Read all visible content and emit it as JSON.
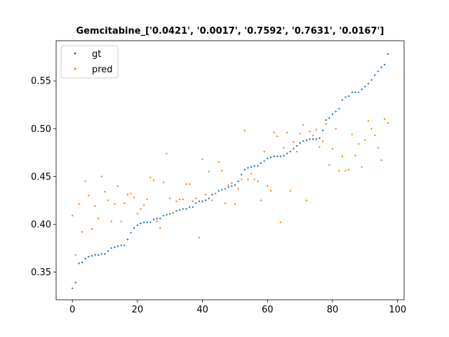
{
  "chart_data": {
    "type": "scatter",
    "title": "Gemcitabine_['0.0421', '0.0017', '0.7592', '0.7631', '0.0167']",
    "xlabel": "",
    "ylabel": "",
    "xlim": [
      -5,
      102
    ],
    "ylim": [
      0.321,
      0.592
    ],
    "xticks": [
      0,
      20,
      40,
      60,
      80,
      100
    ],
    "yticks": [
      0.35,
      0.4,
      0.45,
      0.5,
      0.55
    ],
    "xtick_labels": [
      "0",
      "20",
      "40",
      "60",
      "80",
      "100"
    ],
    "ytick_labels": [
      "0.35",
      "0.40",
      "0.45",
      "0.50",
      "0.55"
    ],
    "grid": false,
    "legend_position": "top-left",
    "series": [
      {
        "name": "gt",
        "color": "#1f77b4",
        "x": [
          0,
          1,
          2,
          3,
          4,
          5,
          6,
          7,
          8,
          9,
          10,
          11,
          12,
          13,
          14,
          15,
          16,
          17,
          18,
          19,
          20,
          21,
          22,
          23,
          24,
          25,
          26,
          27,
          28,
          29,
          30,
          31,
          32,
          33,
          34,
          35,
          36,
          37,
          38,
          39,
          40,
          41,
          42,
          43,
          44,
          45,
          46,
          47,
          48,
          49,
          50,
          51,
          52,
          53,
          54,
          55,
          56,
          57,
          58,
          59,
          60,
          61,
          62,
          63,
          64,
          65,
          66,
          67,
          68,
          69,
          70,
          71,
          72,
          73,
          74,
          75,
          76,
          77,
          78,
          79,
          80,
          81,
          82,
          83,
          84,
          85,
          86,
          87,
          88,
          89,
          90,
          91,
          92,
          93,
          94,
          95,
          96,
          97
        ],
        "y": [
          0.333,
          0.339,
          0.359,
          0.36,
          0.364,
          0.366,
          0.367,
          0.368,
          0.368,
          0.369,
          0.369,
          0.372,
          0.375,
          0.376,
          0.377,
          0.378,
          0.378,
          0.384,
          0.391,
          0.396,
          0.399,
          0.401,
          0.402,
          0.402,
          0.402,
          0.405,
          0.406,
          0.406,
          0.409,
          0.41,
          0.411,
          0.412,
          0.414,
          0.415,
          0.416,
          0.416,
          0.418,
          0.418,
          0.422,
          0.424,
          0.424,
          0.425,
          0.427,
          0.431,
          0.432,
          0.435,
          0.436,
          0.437,
          0.439,
          0.44,
          0.441,
          0.445,
          0.452,
          0.457,
          0.459,
          0.46,
          0.461,
          0.461,
          0.464,
          0.466,
          0.469,
          0.47,
          0.471,
          0.471,
          0.471,
          0.472,
          0.474,
          0.476,
          0.479,
          0.482,
          0.485,
          0.487,
          0.488,
          0.489,
          0.489,
          0.489,
          0.49,
          0.498,
          0.509,
          0.511,
          0.515,
          0.518,
          0.521,
          0.53,
          0.533,
          0.534,
          0.538,
          0.538,
          0.538,
          0.541,
          0.544,
          0.547,
          0.551,
          0.556,
          0.56,
          0.564,
          0.567,
          0.578
        ]
      },
      {
        "name": "pred",
        "color": "#ff7f0e",
        "x": [
          0,
          1,
          2,
          3,
          4,
          5,
          6,
          7,
          8,
          9,
          10,
          11,
          12,
          13,
          14,
          15,
          16,
          17,
          18,
          19,
          20,
          21,
          22,
          23,
          24,
          25,
          26,
          27,
          28,
          29,
          30,
          31,
          32,
          33,
          34,
          35,
          36,
          37,
          38,
          39,
          40,
          41,
          42,
          43,
          44,
          45,
          46,
          47,
          48,
          49,
          50,
          51,
          52,
          53,
          54,
          55,
          56,
          57,
          58,
          59,
          60,
          61,
          62,
          63,
          64,
          65,
          66,
          67,
          68,
          69,
          70,
          71,
          72,
          73,
          74,
          75,
          76,
          77,
          78,
          79,
          80,
          81,
          82,
          83,
          84,
          85,
          86,
          87,
          88,
          89,
          90,
          91,
          92,
          93,
          94,
          95,
          96,
          97
        ],
        "y": [
          0.409,
          0.368,
          0.421,
          0.392,
          0.445,
          0.43,
          0.395,
          0.419,
          0.406,
          0.45,
          0.434,
          0.425,
          0.403,
          0.421,
          0.44,
          0.403,
          0.422,
          0.431,
          0.432,
          0.428,
          0.411,
          0.416,
          0.42,
          0.426,
          0.449,
          0.446,
          0.403,
          0.396,
          0.444,
          0.474,
          0.427,
          0.412,
          0.424,
          0.426,
          0.426,
          0.442,
          0.442,
          0.424,
          0.427,
          0.386,
          0.468,
          0.431,
          0.455,
          0.425,
          0.432,
          0.465,
          0.456,
          0.422,
          0.441,
          0.443,
          0.421,
          0.437,
          0.447,
          0.498,
          0.447,
          0.453,
          0.447,
          0.445,
          0.425,
          0.476,
          0.44,
          0.435,
          0.496,
          0.492,
          0.402,
          0.48,
          0.496,
          0.435,
          0.486,
          0.476,
          0.495,
          0.504,
          0.425,
          0.497,
          0.493,
          0.499,
          0.481,
          0.487,
          0.505,
          0.462,
          0.479,
          0.5,
          0.456,
          0.471,
          0.456,
          0.457,
          0.494,
          0.472,
          0.484,
          0.46,
          0.488,
          0.508,
          0.5,
          0.493,
          0.48,
          0.467,
          0.51,
          0.506
        ]
      }
    ]
  }
}
